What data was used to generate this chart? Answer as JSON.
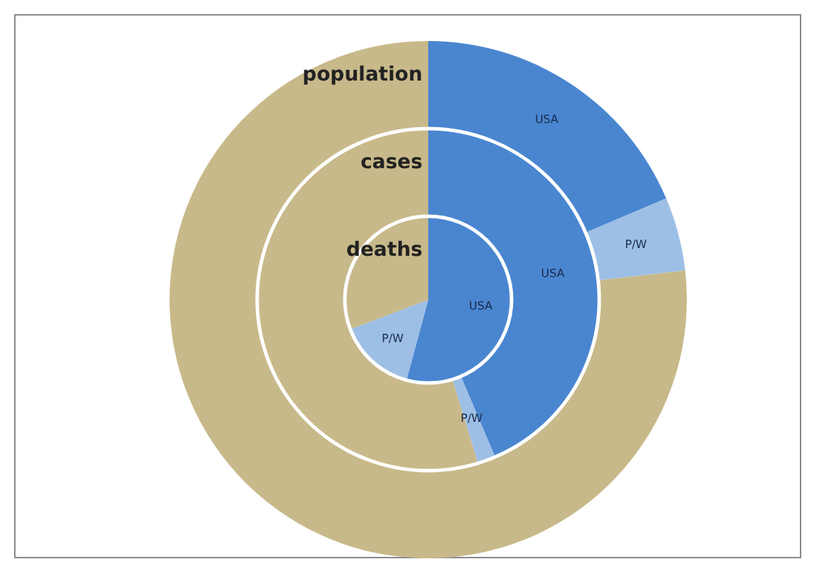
{
  "chart_data": {
    "type": "donut",
    "categories": [
      "USA",
      "P/W",
      null
    ],
    "colors": [
      "#4a86d0",
      "#9dbfe6",
      "#c8b98a"
    ],
    "series": [
      {
        "name": "population",
        "values": [
          18.6,
          4.6,
          76.8
        ]
      },
      {
        "name": "cases",
        "values": [
          43.6,
          1.7,
          54.7
        ]
      },
      {
        "name": "deaths",
        "values": [
          54.2,
          15.0,
          30.8
        ]
      }
    ],
    "legend": false
  }
}
